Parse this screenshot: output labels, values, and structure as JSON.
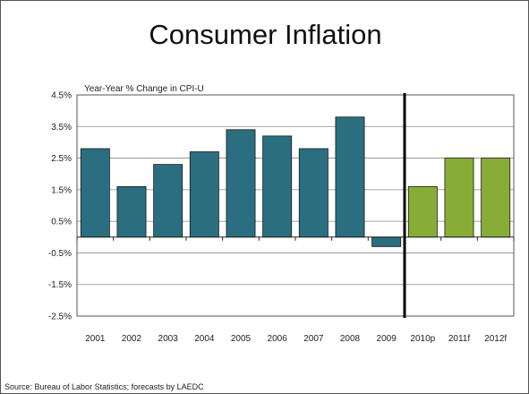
{
  "slide": {
    "title": "Consumer Inflation",
    "source": "Source:  Bureau of Labor Statistics; forecasts by LAEDC"
  },
  "colors": {
    "actual": "#2b6e80",
    "forecast": "#87ad36",
    "divider": "#000000"
  },
  "chart_data": {
    "type": "bar",
    "title": "Consumer Inflation",
    "subtitle": "Year-Year % Change in CPI-U",
    "categories": [
      "2001",
      "2002",
      "2003",
      "2004",
      "2005",
      "2006",
      "2007",
      "2008",
      "2009",
      "2010p",
      "2011f",
      "2012f"
    ],
    "series": [
      {
        "values": [
          2.8,
          1.6,
          2.3,
          2.7,
          3.4,
          3.2,
          2.8,
          3.8,
          -0.3,
          1.6,
          2.5,
          2.5
        ]
      }
    ],
    "forecast_from_index": 9,
    "ylim": [
      -2.5,
      4.5
    ],
    "y_ticks": [
      4.5,
      3.5,
      2.5,
      1.5,
      0.5,
      -0.5,
      -1.5,
      -2.5
    ],
    "y_tick_labels": [
      "4.5%",
      "3.5%",
      "2.5%",
      "1.5%",
      "0.5%",
      "-0.5%",
      "-1.5%",
      "-2.5%"
    ],
    "xlabel": "",
    "ylabel": "",
    "grid": true,
    "legend": "none"
  }
}
